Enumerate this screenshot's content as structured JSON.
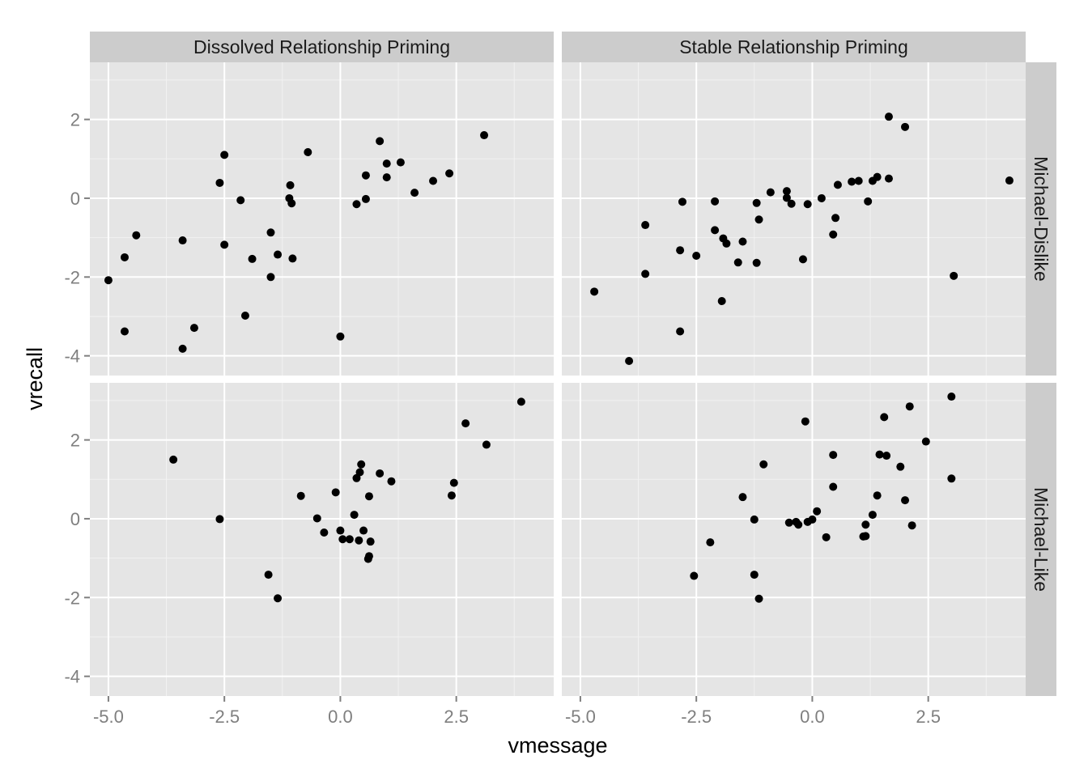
{
  "chart_data": {
    "type": "scatter",
    "xlabel": "vmessage",
    "ylabel": "vrecall",
    "xlim": [
      -5.4,
      4.6
    ],
    "ylim": [
      -4.5,
      3.45
    ],
    "x_ticks": [
      -5.0,
      -2.5,
      0.0,
      2.5
    ],
    "x_tick_labels": [
      "-5.0",
      "-2.5",
      "0.0",
      "2.5"
    ],
    "y_ticks": [
      -4,
      -2,
      0,
      2
    ],
    "y_tick_labels": [
      "-4",
      "-2",
      "0",
      "2"
    ],
    "grid": true,
    "col_facets": [
      "Dissolved Relationship Priming",
      "Stable Relationship Priming"
    ],
    "row_facets": [
      "Michael-Dislike",
      "Michael-Like"
    ],
    "panels": [
      {
        "col": "Dissolved Relationship Priming",
        "row": "Michael-Dislike",
        "points": [
          [
            -5.0,
            -2.08
          ],
          [
            -4.65,
            -1.5
          ],
          [
            -4.65,
            -3.38
          ],
          [
            -4.4,
            -0.94
          ],
          [
            -3.4,
            -1.07
          ],
          [
            -3.4,
            -3.82
          ],
          [
            -3.15,
            -3.29
          ],
          [
            -2.6,
            0.39
          ],
          [
            -2.5,
            1.1
          ],
          [
            -2.5,
            -1.18
          ],
          [
            -2.15,
            -0.05
          ],
          [
            -2.05,
            -2.98
          ],
          [
            -1.9,
            -1.54
          ],
          [
            -1.5,
            -0.87
          ],
          [
            -1.5,
            -2.0
          ],
          [
            -1.35,
            -1.43
          ],
          [
            -1.1,
            0.0
          ],
          [
            -1.08,
            0.33
          ],
          [
            -1.05,
            -0.13
          ],
          [
            -1.03,
            -1.53
          ],
          [
            -0.7,
            1.17
          ],
          [
            0.0,
            -3.51
          ],
          [
            0.35,
            -0.15
          ],
          [
            0.55,
            -0.02
          ],
          [
            0.55,
            0.58
          ],
          [
            0.85,
            1.45
          ],
          [
            1.0,
            0.53
          ],
          [
            1.0,
            0.88
          ],
          [
            1.3,
            0.91
          ],
          [
            1.6,
            0.14
          ],
          [
            2.0,
            0.44
          ],
          [
            2.35,
            0.63
          ],
          [
            3.1,
            1.6
          ]
        ]
      },
      {
        "col": "Stable Relationship Priming",
        "row": "Michael-Dislike",
        "points": [
          [
            -4.7,
            -2.37
          ],
          [
            -3.95,
            -4.13
          ],
          [
            -3.6,
            -0.68
          ],
          [
            -3.6,
            -1.92
          ],
          [
            -2.85,
            -1.32
          ],
          [
            -2.85,
            -3.38
          ],
          [
            -2.8,
            -0.09
          ],
          [
            -2.5,
            -1.46
          ],
          [
            -2.1,
            -0.08
          ],
          [
            -2.1,
            -0.81
          ],
          [
            -1.95,
            -2.61
          ],
          [
            -1.92,
            -1.02
          ],
          [
            -1.85,
            -1.15
          ],
          [
            -1.6,
            -1.63
          ],
          [
            -1.5,
            -1.1
          ],
          [
            -1.2,
            -0.12
          ],
          [
            -1.2,
            -1.64
          ],
          [
            -1.15,
            -0.54
          ],
          [
            -0.9,
            0.15
          ],
          [
            -0.55,
            0.18
          ],
          [
            -0.55,
            0.01
          ],
          [
            -0.45,
            -0.14
          ],
          [
            -0.2,
            -1.55
          ],
          [
            -0.1,
            -0.15
          ],
          [
            0.2,
            0.0
          ],
          [
            0.45,
            -0.92
          ],
          [
            0.5,
            -0.5
          ],
          [
            0.55,
            0.34
          ],
          [
            0.85,
            0.42
          ],
          [
            1.0,
            0.44
          ],
          [
            1.2,
            -0.08
          ],
          [
            1.3,
            0.44
          ],
          [
            1.4,
            0.54
          ],
          [
            1.65,
            2.07
          ],
          [
            1.65,
            0.5
          ],
          [
            2.0,
            1.81
          ],
          [
            3.05,
            -1.97
          ],
          [
            4.25,
            0.45
          ]
        ]
      },
      {
        "col": "Dissolved Relationship Priming",
        "row": "Michael-Like",
        "points": [
          [
            -3.6,
            1.5
          ],
          [
            -2.6,
            -0.01
          ],
          [
            -1.55,
            -1.42
          ],
          [
            -1.35,
            -2.02
          ],
          [
            -0.85,
            0.58
          ],
          [
            -0.5,
            0.01
          ],
          [
            -0.35,
            -0.35
          ],
          [
            -0.1,
            0.67
          ],
          [
            0.0,
            -0.3
          ],
          [
            0.05,
            -0.52
          ],
          [
            0.2,
            -0.52
          ],
          [
            0.3,
            0.1
          ],
          [
            0.35,
            1.03
          ],
          [
            0.4,
            -0.55
          ],
          [
            0.42,
            1.18
          ],
          [
            0.45,
            1.38
          ],
          [
            0.5,
            -0.3
          ],
          [
            0.6,
            -1.02
          ],
          [
            0.62,
            -0.95
          ],
          [
            0.62,
            0.57
          ],
          [
            0.65,
            -0.58
          ],
          [
            0.85,
            1.15
          ],
          [
            1.1,
            0.95
          ],
          [
            2.4,
            0.59
          ],
          [
            2.45,
            0.91
          ],
          [
            2.7,
            2.42
          ],
          [
            3.15,
            1.88
          ],
          [
            3.9,
            2.97
          ]
        ]
      },
      {
        "col": "Stable Relationship Priming",
        "row": "Michael-Like",
        "points": [
          [
            -2.55,
            -1.45
          ],
          [
            -2.2,
            -0.6
          ],
          [
            -1.5,
            0.55
          ],
          [
            -1.25,
            -0.02
          ],
          [
            -1.25,
            -1.42
          ],
          [
            -1.15,
            -2.03
          ],
          [
            -1.05,
            1.38
          ],
          [
            -0.5,
            -0.1
          ],
          [
            -0.35,
            -0.08
          ],
          [
            -0.3,
            -0.15
          ],
          [
            -0.15,
            2.47
          ],
          [
            -0.1,
            -0.08
          ],
          [
            0.0,
            -0.02
          ],
          [
            0.1,
            0.19
          ],
          [
            0.3,
            -0.47
          ],
          [
            0.45,
            1.62
          ],
          [
            0.45,
            0.81
          ],
          [
            1.1,
            -0.45
          ],
          [
            1.15,
            -0.44
          ],
          [
            1.15,
            -0.15
          ],
          [
            1.3,
            0.1
          ],
          [
            1.4,
            0.59
          ],
          [
            1.45,
            1.63
          ],
          [
            1.55,
            2.58
          ],
          [
            1.6,
            1.6
          ],
          [
            1.9,
            1.32
          ],
          [
            2.0,
            0.47
          ],
          [
            2.1,
            2.85
          ],
          [
            2.15,
            -0.17
          ],
          [
            2.45,
            1.96
          ],
          [
            3.0,
            3.1
          ],
          [
            3.0,
            1.02
          ]
        ]
      }
    ]
  },
  "colors": {
    "panel_bg": "#e5e5e5",
    "grid_major": "#ffffff",
    "grid_minor": "#f2f2f2",
    "strip_bg": "#cccccc",
    "point": "#000000",
    "tick_text": "#7f7f7f",
    "axis_title": "#000000"
  }
}
